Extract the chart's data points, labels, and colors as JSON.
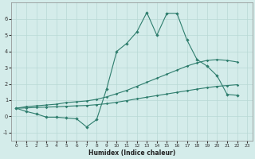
{
  "xlabel": "Humidex (Indice chaleur)",
  "x_values": [
    0,
    1,
    2,
    3,
    4,
    5,
    6,
    7,
    8,
    9,
    10,
    11,
    12,
    13,
    14,
    15,
    16,
    17,
    18,
    19,
    20,
    21,
    22,
    23
  ],
  "main_y": [
    0.5,
    0.3,
    0.15,
    -0.05,
    -0.05,
    -0.1,
    -0.15,
    -0.65,
    -0.2,
    1.7,
    4.0,
    4.5,
    5.2,
    6.4,
    5.0,
    6.35,
    6.35,
    4.7,
    3.5,
    3.1,
    2.5,
    1.35,
    1.3,
    null
  ],
  "reg_upper_y": [
    0.5,
    0.6,
    0.65,
    0.7,
    0.75,
    0.85,
    0.9,
    0.95,
    1.05,
    1.2,
    1.4,
    1.6,
    1.85,
    2.1,
    2.35,
    2.6,
    2.85,
    3.1,
    3.3,
    3.45,
    3.5,
    3.45,
    3.35,
    null
  ],
  "reg_lower_y": [
    0.5,
    0.52,
    0.55,
    0.57,
    0.59,
    0.62,
    0.65,
    0.67,
    0.72,
    0.78,
    0.87,
    0.97,
    1.08,
    1.18,
    1.28,
    1.38,
    1.48,
    1.58,
    1.68,
    1.77,
    1.85,
    1.9,
    1.95,
    null
  ],
  "line_color": "#2e7d6d",
  "bg_color": "#d4ecea",
  "grid_color": "#b8d9d5",
  "ylim": [
    -1.5,
    7.0
  ],
  "xlim": [
    -0.5,
    23.5
  ],
  "yticks": [
    -1,
    0,
    1,
    2,
    3,
    4,
    5,
    6
  ],
  "xticks": [
    0,
    1,
    2,
    3,
    4,
    5,
    6,
    7,
    8,
    9,
    10,
    11,
    12,
    13,
    14,
    15,
    16,
    17,
    18,
    19,
    20,
    21,
    22,
    23
  ]
}
